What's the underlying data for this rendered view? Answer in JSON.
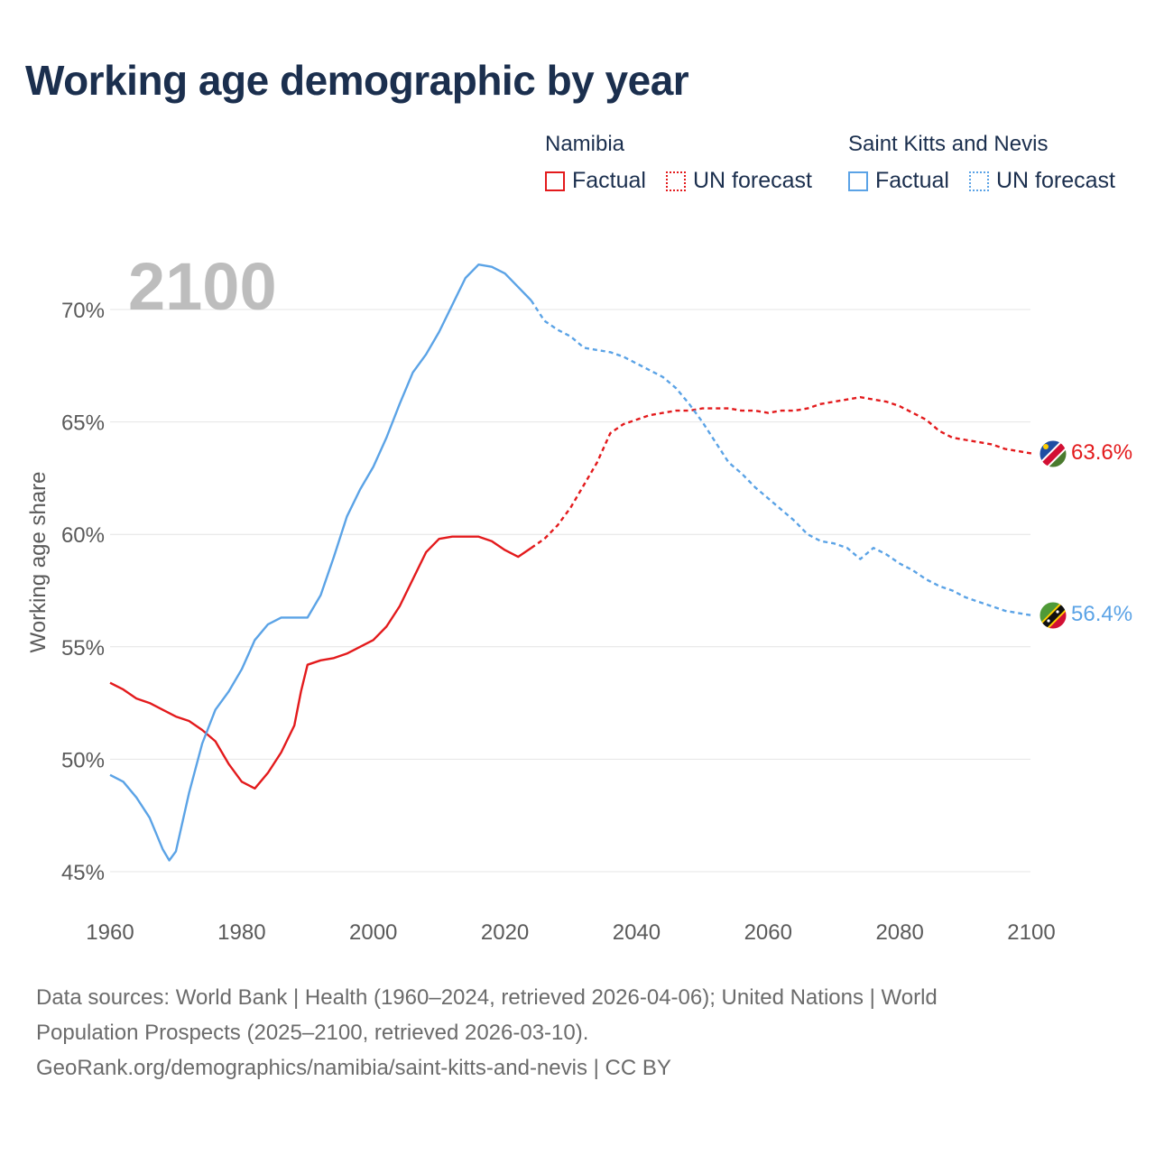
{
  "title": "Working age demographic by year",
  "legend": {
    "groups": [
      {
        "country": "Namibia",
        "color": "#e31a1c",
        "factual_label": "Factual",
        "forecast_label": "UN forecast"
      },
      {
        "country": "Saint Kitts and Nevis",
        "color": "#5ba3e6",
        "factual_label": "Factual",
        "forecast_label": "UN forecast"
      }
    ]
  },
  "footer": {
    "line1": "Data sources: World Bank | Health (1960–2024, retrieved 2026-04-06); United Nations | World",
    "line2": "Population Prospects (2025–2100, retrieved 2026-03-10).",
    "line3": "GeoRank.org/demographics/namibia/saint-kitts-and-nevis | CC BY"
  },
  "chart_data": {
    "type": "line",
    "title": "Working age demographic by year",
    "year_watermark": "2100",
    "xlabel": "",
    "ylabel": "Working age share",
    "xlim": [
      1960,
      2100
    ],
    "ylim": [
      43.5,
      72.5
    ],
    "x_ticks": [
      1960,
      1980,
      2000,
      2020,
      2040,
      2060,
      2080,
      2100
    ],
    "y_ticks": [
      45,
      50,
      55,
      60,
      65,
      70
    ],
    "y_tick_labels": [
      "45%",
      "50%",
      "55%",
      "60%",
      "65%",
      "70%"
    ],
    "forecast_start": 2024,
    "grid": true,
    "series": [
      {
        "name": "Namibia",
        "color": "#e31a1c",
        "end_label": "63.6%",
        "flag": "namibia-flag",
        "points": [
          [
            1960,
            53.4
          ],
          [
            1962,
            53.1
          ],
          [
            1964,
            52.7
          ],
          [
            1966,
            52.5
          ],
          [
            1968,
            52.2
          ],
          [
            1970,
            51.9
          ],
          [
            1972,
            51.7
          ],
          [
            1974,
            51.3
          ],
          [
            1976,
            50.8
          ],
          [
            1978,
            49.8
          ],
          [
            1980,
            49.0
          ],
          [
            1982,
            48.7
          ],
          [
            1984,
            49.4
          ],
          [
            1986,
            50.3
          ],
          [
            1988,
            51.5
          ],
          [
            1989,
            53.0
          ],
          [
            1990,
            54.2
          ],
          [
            1992,
            54.4
          ],
          [
            1994,
            54.5
          ],
          [
            1996,
            54.7
          ],
          [
            1998,
            55.0
          ],
          [
            2000,
            55.3
          ],
          [
            2002,
            55.9
          ],
          [
            2004,
            56.8
          ],
          [
            2006,
            58.0
          ],
          [
            2008,
            59.2
          ],
          [
            2010,
            59.8
          ],
          [
            2012,
            59.9
          ],
          [
            2014,
            59.9
          ],
          [
            2016,
            59.9
          ],
          [
            2018,
            59.7
          ],
          [
            2020,
            59.3
          ],
          [
            2022,
            59.0
          ],
          [
            2024,
            59.4
          ],
          [
            2026,
            59.8
          ],
          [
            2028,
            60.4
          ],
          [
            2030,
            61.2
          ],
          [
            2032,
            62.2
          ],
          [
            2034,
            63.2
          ],
          [
            2036,
            64.5
          ],
          [
            2038,
            64.9
          ],
          [
            2040,
            65.1
          ],
          [
            2042,
            65.3
          ],
          [
            2044,
            65.4
          ],
          [
            2046,
            65.5
          ],
          [
            2048,
            65.5
          ],
          [
            2050,
            65.6
          ],
          [
            2052,
            65.6
          ],
          [
            2054,
            65.6
          ],
          [
            2056,
            65.5
          ],
          [
            2058,
            65.5
          ],
          [
            2060,
            65.4
          ],
          [
            2062,
            65.5
          ],
          [
            2064,
            65.5
          ],
          [
            2066,
            65.6
          ],
          [
            2068,
            65.8
          ],
          [
            2070,
            65.9
          ],
          [
            2072,
            66.0
          ],
          [
            2074,
            66.1
          ],
          [
            2076,
            66.0
          ],
          [
            2078,
            65.9
          ],
          [
            2080,
            65.7
          ],
          [
            2082,
            65.4
          ],
          [
            2084,
            65.1
          ],
          [
            2086,
            64.6
          ],
          [
            2088,
            64.3
          ],
          [
            2090,
            64.2
          ],
          [
            2092,
            64.1
          ],
          [
            2094,
            64.0
          ],
          [
            2096,
            63.8
          ],
          [
            2098,
            63.7
          ],
          [
            2100,
            63.6
          ]
        ]
      },
      {
        "name": "Saint Kitts and Nevis",
        "color": "#5ba3e6",
        "end_label": "56.4%",
        "flag": "saint-kitts-and-nevis-flag",
        "points": [
          [
            1960,
            49.3
          ],
          [
            1962,
            49.0
          ],
          [
            1964,
            48.3
          ],
          [
            1966,
            47.4
          ],
          [
            1968,
            46.0
          ],
          [
            1969,
            45.5
          ],
          [
            1970,
            45.9
          ],
          [
            1972,
            48.5
          ],
          [
            1974,
            50.7
          ],
          [
            1976,
            52.2
          ],
          [
            1978,
            53.0
          ],
          [
            1980,
            54.0
          ],
          [
            1982,
            55.3
          ],
          [
            1984,
            56.0
          ],
          [
            1986,
            56.3
          ],
          [
            1988,
            56.3
          ],
          [
            1990,
            56.3
          ],
          [
            1992,
            57.3
          ],
          [
            1994,
            59.0
          ],
          [
            1996,
            60.8
          ],
          [
            1998,
            62.0
          ],
          [
            2000,
            63.0
          ],
          [
            2002,
            64.3
          ],
          [
            2004,
            65.8
          ],
          [
            2006,
            67.2
          ],
          [
            2008,
            68.0
          ],
          [
            2010,
            69.0
          ],
          [
            2012,
            70.2
          ],
          [
            2014,
            71.4
          ],
          [
            2016,
            72.0
          ],
          [
            2018,
            71.9
          ],
          [
            2020,
            71.6
          ],
          [
            2022,
            71.0
          ],
          [
            2024,
            70.4
          ],
          [
            2026,
            69.5
          ],
          [
            2028,
            69.1
          ],
          [
            2030,
            68.8
          ],
          [
            2032,
            68.3
          ],
          [
            2034,
            68.2
          ],
          [
            2036,
            68.1
          ],
          [
            2038,
            67.9
          ],
          [
            2040,
            67.6
          ],
          [
            2042,
            67.3
          ],
          [
            2044,
            67.0
          ],
          [
            2046,
            66.5
          ],
          [
            2048,
            65.8
          ],
          [
            2050,
            65.0
          ],
          [
            2052,
            64.1
          ],
          [
            2054,
            63.2
          ],
          [
            2056,
            62.7
          ],
          [
            2058,
            62.1
          ],
          [
            2060,
            61.6
          ],
          [
            2062,
            61.1
          ],
          [
            2064,
            60.6
          ],
          [
            2066,
            60.0
          ],
          [
            2068,
            59.7
          ],
          [
            2070,
            59.6
          ],
          [
            2072,
            59.4
          ],
          [
            2074,
            58.9
          ],
          [
            2076,
            59.4
          ],
          [
            2078,
            59.1
          ],
          [
            2080,
            58.7
          ],
          [
            2082,
            58.4
          ],
          [
            2084,
            58.0
          ],
          [
            2086,
            57.7
          ],
          [
            2088,
            57.5
          ],
          [
            2090,
            57.2
          ],
          [
            2092,
            57.0
          ],
          [
            2094,
            56.8
          ],
          [
            2096,
            56.6
          ],
          [
            2098,
            56.5
          ],
          [
            2100,
            56.4
          ]
        ]
      }
    ]
  }
}
